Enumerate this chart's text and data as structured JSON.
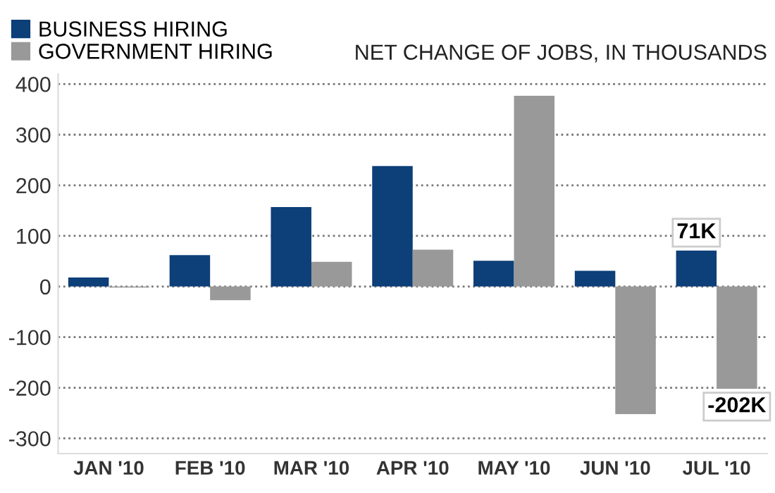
{
  "chart_data": {
    "type": "bar",
    "ylabel": "NET CHANGE OF JOBS, IN THOUSANDS",
    "categories": [
      "JAN '10",
      "FEB '10",
      "MAR '10",
      "APR '10",
      "MAY '10",
      "JUN '10",
      "JUL '10"
    ],
    "series": [
      {
        "name": "BUSINESS HIRING",
        "color": "#0d3f78",
        "values": [
          18,
          62,
          157,
          238,
          51,
          31,
          71
        ],
        "value_labels": [
          null,
          null,
          null,
          null,
          null,
          null,
          "71K"
        ]
      },
      {
        "name": "GOVERNMENT HIRING",
        "color": "#999999",
        "values": [
          -2,
          -27,
          49,
          73,
          377,
          -252,
          -202
        ],
        "value_labels": [
          null,
          null,
          null,
          null,
          null,
          null,
          "-202K"
        ]
      }
    ],
    "ylim": [
      -330,
      420
    ],
    "yticks": [
      -300,
      -200,
      -100,
      0,
      100,
      200,
      300,
      400
    ],
    "grid": "y",
    "legend": "top left"
  }
}
